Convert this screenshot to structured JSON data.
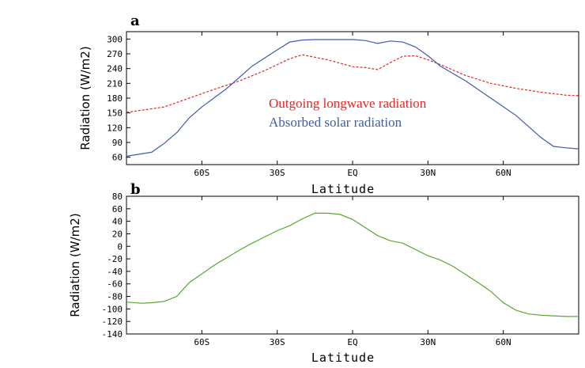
{
  "chart_data": [
    {
      "panel": "a",
      "type": "line",
      "xlabel": "Latitude",
      "ylabel": "Radiation (W/m2)",
      "xlim": [
        -90,
        90
      ],
      "ylim": [
        45,
        315
      ],
      "x_ticks": [
        {
          "value": -60,
          "label": "60S"
        },
        {
          "value": -30,
          "label": "30S"
        },
        {
          "value": 0,
          "label": "EQ"
        },
        {
          "value": 30,
          "label": "30N"
        },
        {
          "value": 60,
          "label": "60N"
        }
      ],
      "y_ticks": [
        60,
        90,
        120,
        150,
        180,
        210,
        240,
        270,
        300
      ],
      "series": [
        {
          "name": "Outgoing longwave radiation",
          "color": "#e32626",
          "style": "dashed",
          "x": [
            -90,
            -75,
            -65,
            -55,
            -45,
            -35,
            -25,
            -20,
            -10,
            0,
            5,
            10,
            15,
            20,
            25,
            30,
            35,
            45,
            55,
            65,
            75,
            85,
            90
          ],
          "y": [
            151,
            162,
            180,
            198,
            215,
            236,
            260,
            268,
            258,
            244,
            242,
            238,
            252,
            265,
            266,
            258,
            248,
            226,
            210,
            200,
            192,
            186,
            185
          ]
        },
        {
          "name": "Absorbed solar radiation",
          "color": "#3f5ca8",
          "style": "solid",
          "x": [
            -90,
            -80,
            -75,
            -70,
            -65,
            -60,
            -50,
            -40,
            -30,
            -25,
            -20,
            -15,
            -10,
            0,
            5,
            10,
            15,
            20,
            25,
            30,
            35,
            45,
            55,
            65,
            75,
            80,
            85,
            90
          ],
          "y": [
            62,
            70,
            88,
            110,
            140,
            162,
            200,
            245,
            278,
            294,
            298,
            299,
            299,
            299,
            297,
            291,
            296,
            294,
            284,
            266,
            245,
            215,
            180,
            145,
            100,
            82,
            79,
            77
          ]
        }
      ]
    },
    {
      "panel": "b",
      "type": "line",
      "xlabel": "Latitude",
      "ylabel": "Radiation (W/m2)",
      "xlim": [
        -90,
        90
      ],
      "ylim": [
        -140,
        80
      ],
      "x_ticks": [
        {
          "value": -60,
          "label": "60S"
        },
        {
          "value": -30,
          "label": "30S"
        },
        {
          "value": 0,
          "label": "EQ"
        },
        {
          "value": 30,
          "label": "30N"
        },
        {
          "value": 60,
          "label": "60N"
        }
      ],
      "y_ticks": [
        -140,
        -120,
        -100,
        -80,
        -60,
        -40,
        -20,
        0,
        20,
        40,
        60,
        80
      ],
      "series": [
        {
          "color": "#58a82e",
          "style": "solid",
          "x": [
            -90,
            -84,
            -80,
            -75,
            -70,
            -65,
            -60,
            -55,
            -50,
            -45,
            -40,
            -35,
            -30,
            -25,
            -20,
            -15,
            -10,
            -5,
            0,
            5,
            10,
            15,
            20,
            25,
            30,
            35,
            40,
            45,
            50,
            55,
            60,
            65,
            70,
            75,
            80,
            85,
            90
          ],
          "y": [
            -89,
            -91,
            -90,
            -88,
            -80,
            -58,
            -44,
            -30,
            -18,
            -6,
            5,
            15,
            25,
            33,
            44,
            53,
            53,
            51,
            43,
            30,
            17,
            9,
            5,
            -5,
            -15,
            -22,
            -32,
            -45,
            -58,
            -72,
            -90,
            -102,
            -108,
            -110,
            -111,
            -112,
            -112
          ]
        }
      ]
    }
  ]
}
